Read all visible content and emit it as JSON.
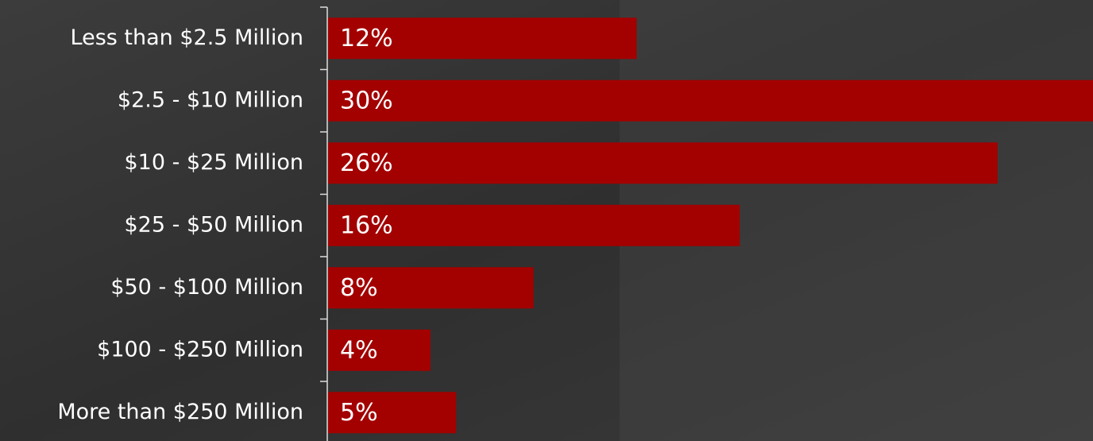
{
  "chart_data": {
    "type": "hbar",
    "categories": [
      "Less than $2.5 Million",
      "$2.5 - $10 Million",
      "$10 - $25 Million",
      "$25 - $50 Million",
      "$50 - $100 Million",
      "$100 - $250 Million",
      "More than $250 Million"
    ],
    "values": [
      12,
      30,
      26,
      16,
      8,
      4,
      5
    ],
    "value_labels": [
      "12%",
      "30%",
      "26%",
      "16%",
      "8%",
      "4%",
      "5%"
    ],
    "color": "#a30000",
    "xlim": [
      0,
      29.7
    ]
  }
}
